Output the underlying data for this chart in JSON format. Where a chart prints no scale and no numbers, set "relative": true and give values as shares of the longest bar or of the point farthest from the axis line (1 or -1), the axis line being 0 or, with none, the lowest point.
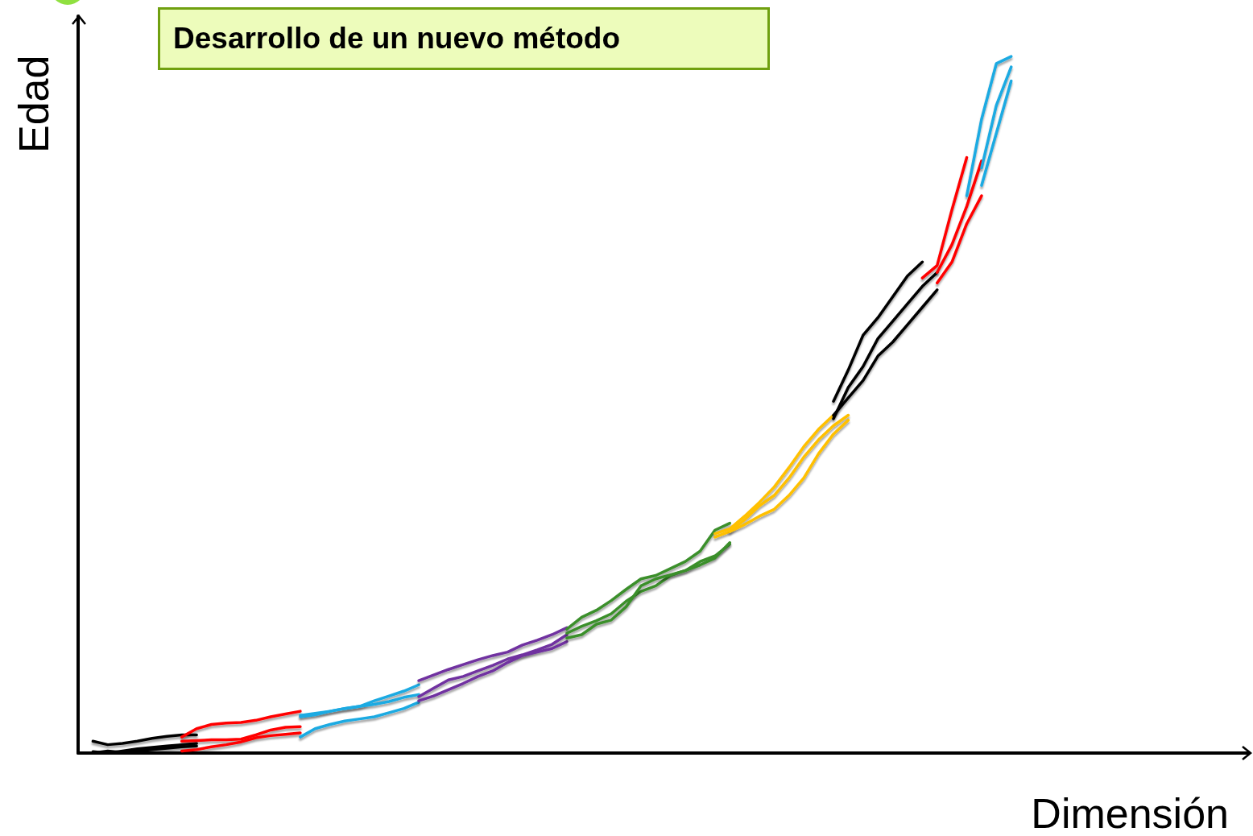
{
  "chart_data": {
    "type": "line",
    "title": "Desarrollo de un nuevo método",
    "xlabel": "Dimensión",
    "ylabel": "Edad",
    "relative": true,
    "marker": "none",
    "categories": [
      null,
      null,
      null,
      null,
      null,
      null,
      null,
      null,
      null,
      null,
      null,
      null,
      null,
      null,
      null,
      null,
      null,
      null,
      null,
      null,
      null,
      null,
      null,
      null,
      null,
      null,
      null,
      null,
      null,
      null,
      null,
      null,
      null,
      null,
      null,
      null,
      null,
      null,
      null,
      null,
      null,
      null,
      null,
      null,
      null,
      null,
      null,
      null,
      null,
      null,
      null,
      null,
      null,
      null,
      null,
      null,
      null,
      null,
      null,
      null,
      null,
      null,
      null,
      null,
      null,
      null,
      null,
      null,
      null,
      null,
      null,
      null,
      null,
      null,
      null,
      null,
      null,
      null,
      null,
      null
    ],
    "series": [
      {
        "color": "#000000",
        "values": [
          null,
          0.017,
          0.012,
          0.014,
          0.017,
          0.021,
          0.024,
          0.026,
          0.026,
          null,
          null,
          null,
          null,
          null,
          null,
          null,
          null,
          null,
          null,
          null,
          null,
          null,
          null,
          null,
          null,
          null,
          null,
          null,
          null,
          null,
          null,
          null,
          null,
          null,
          null,
          null,
          null,
          null,
          null,
          null,
          null,
          null,
          null,
          null,
          null,
          null,
          null,
          null,
          null,
          null,
          null,
          null,
          null,
          null,
          null,
          null,
          null,
          null,
          null,
          null,
          null,
          null,
          null,
          null,
          null,
          null,
          null,
          null,
          null,
          null,
          null,
          null,
          null,
          null,
          null,
          null,
          null,
          null,
          null,
          null
        ]
      },
      {
        "color": "#000000",
        "values": [
          null,
          0.002,
          0.0,
          0.003,
          0.006,
          0.008,
          0.01,
          0.012,
          0.014,
          null,
          null,
          null,
          null,
          null,
          null,
          null,
          null,
          null,
          null,
          null,
          null,
          null,
          null,
          null,
          null,
          null,
          null,
          null,
          null,
          null,
          null,
          null,
          null,
          null,
          null,
          null,
          null,
          null,
          null,
          null,
          null,
          null,
          null,
          null,
          null,
          null,
          null,
          null,
          null,
          null,
          null,
          null,
          null,
          null,
          null,
          null,
          null,
          null,
          null,
          null,
          null,
          null,
          null,
          null,
          null,
          null,
          null,
          null,
          null,
          null,
          null,
          null,
          null,
          null,
          null,
          null,
          null,
          null,
          null,
          null
        ]
      },
      {
        "color": "#000000",
        "values": [
          null,
          0.0,
          0.003,
          0.001,
          0.003,
          0.005,
          0.007,
          0.009,
          0.01,
          null,
          null,
          null,
          null,
          null,
          null,
          null,
          null,
          null,
          null,
          null,
          null,
          null,
          null,
          null,
          null,
          null,
          null,
          null,
          null,
          null,
          null,
          null,
          null,
          null,
          null,
          null,
          null,
          null,
          null,
          null,
          null,
          null,
          null,
          null,
          null,
          null,
          null,
          null,
          null,
          null,
          null,
          null,
          null,
          null,
          null,
          null,
          null,
          null,
          null,
          null,
          null,
          null,
          null,
          null,
          null,
          null,
          null,
          null,
          null,
          null,
          null,
          null,
          null,
          null,
          null,
          null,
          null,
          null,
          null,
          null
        ]
      },
      {
        "color": "#ff0000",
        "values": [
          null,
          null,
          null,
          null,
          null,
          null,
          null,
          0.023,
          0.035,
          0.041,
          0.043,
          0.044,
          0.047,
          0.052,
          0.056,
          0.06,
          null,
          null,
          null,
          null,
          null,
          null,
          null,
          null,
          null,
          null,
          null,
          null,
          null,
          null,
          null,
          null,
          null,
          null,
          null,
          null,
          null,
          null,
          null,
          null,
          null,
          null,
          null,
          null,
          null,
          null,
          null,
          null,
          null,
          null,
          null,
          null,
          null,
          null,
          null,
          null,
          null,
          null,
          null,
          null,
          null,
          null,
          null,
          null,
          null,
          null,
          null,
          null,
          null,
          null,
          null,
          null,
          null,
          null,
          null,
          null,
          null,
          null,
          null,
          null
        ]
      },
      {
        "color": "#ff0000",
        "values": [
          null,
          null,
          null,
          null,
          null,
          null,
          null,
          0.017,
          0.018,
          0.019,
          0.019,
          0.02,
          0.026,
          0.033,
          0.037,
          0.038,
          null,
          null,
          null,
          null,
          null,
          null,
          null,
          null,
          null,
          null,
          null,
          null,
          null,
          null,
          null,
          null,
          null,
          null,
          null,
          null,
          null,
          null,
          null,
          null,
          null,
          null,
          null,
          null,
          null,
          null,
          null,
          null,
          null,
          null,
          null,
          null,
          null,
          null,
          null,
          null,
          null,
          null,
          null,
          null,
          null,
          null,
          null,
          null,
          null,
          null,
          null,
          null,
          null,
          null,
          null,
          null,
          null,
          null,
          null,
          null,
          null,
          null,
          null,
          null
        ]
      },
      {
        "color": "#ff0000",
        "values": [
          null,
          null,
          null,
          null,
          null,
          null,
          null,
          0.003,
          0.005,
          0.009,
          0.012,
          0.016,
          0.022,
          0.025,
          0.027,
          0.029,
          null,
          null,
          null,
          null,
          null,
          null,
          null,
          null,
          null,
          null,
          null,
          null,
          null,
          null,
          null,
          null,
          null,
          null,
          null,
          null,
          null,
          null,
          null,
          null,
          null,
          null,
          null,
          null,
          null,
          null,
          null,
          null,
          null,
          null,
          null,
          null,
          null,
          null,
          null,
          null,
          null,
          null,
          null,
          null,
          null,
          null,
          null,
          null,
          null,
          null,
          null,
          null,
          null,
          null,
          null,
          null,
          null,
          null,
          null,
          null,
          null,
          null,
          null,
          null
        ]
      },
      {
        "color": "#1aaae2",
        "values": [
          null,
          null,
          null,
          null,
          null,
          null,
          null,
          null,
          null,
          null,
          null,
          null,
          null,
          null,
          null,
          0.054,
          0.057,
          0.06,
          0.064,
          0.067,
          0.075,
          0.082,
          0.089,
          0.098,
          null,
          null,
          null,
          null,
          null,
          null,
          null,
          null,
          null,
          null,
          null,
          null,
          null,
          null,
          null,
          null,
          null,
          null,
          null,
          null,
          null,
          null,
          null,
          null,
          null,
          null,
          null,
          null,
          null,
          null,
          null,
          null,
          null,
          null,
          null,
          null,
          null,
          null,
          null,
          null,
          null,
          null,
          null,
          null,
          null,
          null,
          null,
          null,
          null,
          null,
          null,
          null,
          null,
          null,
          null,
          null
        ]
      },
      {
        "color": "#1aaae2",
        "values": [
          null,
          null,
          null,
          null,
          null,
          null,
          null,
          null,
          null,
          null,
          null,
          null,
          null,
          null,
          null,
          0.052,
          0.055,
          0.06,
          0.064,
          0.067,
          0.07,
          0.074,
          0.08,
          0.084,
          null,
          null,
          null,
          null,
          null,
          null,
          null,
          null,
          null,
          null,
          null,
          null,
          null,
          null,
          null,
          null,
          null,
          null,
          null,
          null,
          null,
          null,
          null,
          null,
          null,
          null,
          null,
          null,
          null,
          null,
          null,
          null,
          null,
          null,
          null,
          null,
          null,
          null,
          null,
          null,
          null,
          null,
          null,
          null,
          null,
          null,
          null,
          null,
          null,
          null,
          null,
          null,
          null,
          null,
          null,
          null
        ]
      },
      {
        "color": "#1aaae2",
        "values": [
          null,
          null,
          null,
          null,
          null,
          null,
          null,
          null,
          null,
          null,
          null,
          null,
          null,
          null,
          null,
          0.023,
          0.035,
          0.041,
          0.046,
          0.049,
          0.052,
          0.058,
          0.064,
          0.073,
          null,
          null,
          null,
          null,
          null,
          null,
          null,
          null,
          null,
          null,
          null,
          null,
          null,
          null,
          null,
          null,
          null,
          null,
          null,
          null,
          null,
          null,
          null,
          null,
          null,
          null,
          null,
          null,
          null,
          null,
          null,
          null,
          null,
          null,
          null,
          null,
          null,
          null,
          null,
          null,
          null,
          null,
          null,
          null,
          null,
          null,
          null,
          null,
          null,
          null,
          null,
          null,
          null,
          null,
          null,
          null
        ]
      },
      {
        "color": "#7030a0",
        "values": [
          null,
          null,
          null,
          null,
          null,
          null,
          null,
          null,
          null,
          null,
          null,
          null,
          null,
          null,
          null,
          null,
          null,
          null,
          null,
          null,
          null,
          null,
          null,
          0.104,
          0.112,
          0.12,
          0.127,
          0.134,
          0.14,
          0.145,
          0.155,
          0.162,
          0.17,
          0.18,
          null,
          null,
          null,
          null,
          null,
          null,
          null,
          null,
          null,
          null,
          null,
          null,
          null,
          null,
          null,
          null,
          null,
          null,
          null,
          null,
          null,
          null,
          null,
          null,
          null,
          null,
          null,
          null,
          null,
          null,
          null,
          null,
          null,
          null,
          null,
          null,
          null,
          null,
          null,
          null,
          null,
          null,
          null,
          null,
          null,
          null
        ]
      },
      {
        "color": "#7030a0",
        "values": [
          null,
          null,
          null,
          null,
          null,
          null,
          null,
          null,
          null,
          null,
          null,
          null,
          null,
          null,
          null,
          null,
          null,
          null,
          null,
          null,
          null,
          null,
          null,
          0.081,
          0.093,
          0.105,
          0.11,
          0.118,
          0.126,
          0.135,
          0.141,
          0.148,
          0.156,
          0.17,
          null,
          null,
          null,
          null,
          null,
          null,
          null,
          null,
          null,
          null,
          null,
          null,
          null,
          null,
          null,
          null,
          null,
          null,
          null,
          null,
          null,
          null,
          null,
          null,
          null,
          null,
          null,
          null,
          null,
          null,
          null,
          null,
          null,
          null,
          null,
          null,
          null,
          null,
          null,
          null,
          null,
          null,
          null,
          null,
          null,
          null
        ]
      },
      {
        "color": "#7030a0",
        "values": [
          null,
          null,
          null,
          null,
          null,
          null,
          null,
          null,
          null,
          null,
          null,
          null,
          null,
          null,
          null,
          null,
          null,
          null,
          null,
          null,
          null,
          null,
          null,
          0.075,
          0.082,
          0.091,
          0.1,
          0.11,
          0.118,
          0.13,
          0.14,
          0.145,
          0.15,
          0.16,
          null,
          null,
          null,
          null,
          null,
          null,
          null,
          null,
          null,
          null,
          null,
          null,
          null,
          null,
          null,
          null,
          null,
          null,
          null,
          null,
          null,
          null,
          null,
          null,
          null,
          null,
          null,
          null,
          null,
          null,
          null,
          null,
          null,
          null,
          null,
          null,
          null,
          null,
          null,
          null,
          null,
          null,
          null,
          null,
          null,
          null
        ]
      },
      {
        "color": "#3a8f2c",
        "values": [
          null,
          null,
          null,
          null,
          null,
          null,
          null,
          null,
          null,
          null,
          null,
          null,
          null,
          null,
          null,
          null,
          null,
          null,
          null,
          null,
          null,
          null,
          null,
          null,
          null,
          null,
          null,
          null,
          null,
          null,
          null,
          null,
          null,
          0.178,
          0.195,
          0.205,
          0.219,
          0.235,
          0.25,
          0.255,
          0.265,
          0.275,
          0.29,
          0.32,
          0.33,
          null,
          null,
          null,
          null,
          null,
          null,
          null,
          null,
          null,
          null,
          null,
          null,
          null,
          null,
          null,
          null,
          null,
          null,
          null,
          null,
          null,
          null,
          null,
          null,
          null,
          null,
          null,
          null,
          null,
          null,
          null,
          null,
          null,
          null,
          null
        ]
      },
      {
        "color": "#3a8f2c",
        "values": [
          null,
          null,
          null,
          null,
          null,
          null,
          null,
          null,
          null,
          null,
          null,
          null,
          null,
          null,
          null,
          null,
          null,
          null,
          null,
          null,
          null,
          null,
          null,
          null,
          null,
          null,
          null,
          null,
          null,
          null,
          null,
          null,
          null,
          0.172,
          0.182,
          0.19,
          0.2,
          0.218,
          0.232,
          0.24,
          0.255,
          0.262,
          0.275,
          0.283,
          0.3,
          null,
          null,
          null,
          null,
          null,
          null,
          null,
          null,
          null,
          null,
          null,
          null,
          null,
          null,
          null,
          null,
          null,
          null,
          null,
          null,
          null,
          null,
          null,
          null,
          null,
          null,
          null,
          null,
          null,
          null,
          null,
          null,
          null,
          null,
          null
        ]
      },
      {
        "color": "#3a8f2c",
        "values": [
          null,
          null,
          null,
          null,
          null,
          null,
          null,
          null,
          null,
          null,
          null,
          null,
          null,
          null,
          null,
          null,
          null,
          null,
          null,
          null,
          null,
          null,
          null,
          null,
          null,
          null,
          null,
          null,
          null,
          null,
          null,
          null,
          null,
          0.165,
          0.17,
          0.185,
          0.191,
          0.21,
          0.24,
          0.25,
          0.256,
          0.262,
          0.27,
          0.28,
          0.302,
          null,
          null,
          null,
          null,
          null,
          null,
          null,
          null,
          null,
          null,
          null,
          null,
          null,
          null,
          null,
          null,
          null,
          null,
          null,
          null,
          null,
          null,
          null,
          null,
          null,
          null,
          null,
          null,
          null,
          null,
          null,
          null,
          null,
          null,
          null
        ]
      },
      {
        "color": "#ffc000",
        "values": [
          null,
          null,
          null,
          null,
          null,
          null,
          null,
          null,
          null,
          null,
          null,
          null,
          null,
          null,
          null,
          null,
          null,
          null,
          null,
          null,
          null,
          null,
          null,
          null,
          null,
          null,
          null,
          null,
          null,
          null,
          null,
          null,
          null,
          null,
          null,
          null,
          null,
          null,
          null,
          null,
          null,
          null,
          null,
          0.315,
          0.322,
          0.34,
          0.36,
          0.382,
          0.41,
          0.44,
          0.465,
          0.485,
          null,
          null,
          null,
          null,
          null,
          null,
          null,
          null,
          null,
          null,
          null,
          null,
          null,
          null,
          null,
          null,
          null,
          null,
          null,
          null,
          null,
          null,
          null,
          null,
          null,
          null,
          null,
          null
        ]
      },
      {
        "color": "#ffc000",
        "values": [
          null,
          null,
          null,
          null,
          null,
          null,
          null,
          null,
          null,
          null,
          null,
          null,
          null,
          null,
          null,
          null,
          null,
          null,
          null,
          null,
          null,
          null,
          null,
          null,
          null,
          null,
          null,
          null,
          null,
          null,
          null,
          null,
          null,
          null,
          null,
          null,
          null,
          null,
          null,
          null,
          null,
          null,
          null,
          0.31,
          0.318,
          0.335,
          0.355,
          0.37,
          0.395,
          0.425,
          0.45,
          0.47,
          0.485,
          null,
          null,
          null,
          null,
          null,
          null,
          null,
          null,
          null,
          null,
          null,
          null,
          null,
          null,
          null,
          null,
          null,
          null,
          null,
          null,
          null,
          null,
          null,
          null,
          null,
          null,
          null
        ]
      },
      {
        "color": "#ffc000",
        "values": [
          null,
          null,
          null,
          null,
          null,
          null,
          null,
          null,
          null,
          null,
          null,
          null,
          null,
          null,
          null,
          null,
          null,
          null,
          null,
          null,
          null,
          null,
          null,
          null,
          null,
          null,
          null,
          null,
          null,
          null,
          null,
          null,
          null,
          null,
          null,
          null,
          null,
          null,
          null,
          null,
          null,
          null,
          null,
          null,
          0.318,
          0.328,
          0.34,
          0.35,
          0.37,
          0.395,
          0.43,
          0.458,
          0.478,
          null,
          null,
          null,
          null,
          null,
          null,
          null,
          null,
          null,
          null,
          null,
          null,
          null,
          null,
          null,
          null,
          null,
          null,
          null,
          null,
          null,
          null,
          null,
          null,
          null,
          null,
          null
        ]
      },
      {
        "color": "#000000",
        "values": [
          null,
          null,
          null,
          null,
          null,
          null,
          null,
          null,
          null,
          null,
          null,
          null,
          null,
          null,
          null,
          null,
          null,
          null,
          null,
          null,
          null,
          null,
          null,
          null,
          null,
          null,
          null,
          null,
          null,
          null,
          null,
          null,
          null,
          null,
          null,
          null,
          null,
          null,
          null,
          null,
          null,
          null,
          null,
          null,
          null,
          null,
          null,
          null,
          null,
          null,
          null,
          0.505,
          0.55,
          0.6,
          0.625,
          0.655,
          0.685,
          0.705,
          null,
          null,
          null,
          null,
          null,
          null,
          null,
          null,
          null,
          null,
          null,
          null,
          null,
          null,
          null,
          null,
          null,
          null,
          null,
          null,
          null,
          null
        ]
      },
      {
        "color": "#000000",
        "values": [
          null,
          null,
          null,
          null,
          null,
          null,
          null,
          null,
          null,
          null,
          null,
          null,
          null,
          null,
          null,
          null,
          null,
          null,
          null,
          null,
          null,
          null,
          null,
          null,
          null,
          null,
          null,
          null,
          null,
          null,
          null,
          null,
          null,
          null,
          null,
          null,
          null,
          null,
          null,
          null,
          null,
          null,
          null,
          null,
          null,
          null,
          null,
          null,
          null,
          null,
          null,
          0.48,
          0.525,
          0.555,
          0.595,
          0.62,
          0.645,
          0.67,
          0.69,
          null,
          null,
          null,
          null,
          null,
          null,
          null,
          null,
          null,
          null,
          null,
          null,
          null,
          null,
          null,
          null,
          null,
          null,
          null,
          null,
          null
        ]
      },
      {
        "color": "#000000",
        "values": [
          null,
          null,
          null,
          null,
          null,
          null,
          null,
          null,
          null,
          null,
          null,
          null,
          null,
          null,
          null,
          null,
          null,
          null,
          null,
          null,
          null,
          null,
          null,
          null,
          null,
          null,
          null,
          null,
          null,
          null,
          null,
          null,
          null,
          null,
          null,
          null,
          null,
          null,
          null,
          null,
          null,
          null,
          null,
          null,
          null,
          null,
          null,
          null,
          null,
          null,
          null,
          0.485,
          0.51,
          0.535,
          0.57,
          0.59,
          0.615,
          0.64,
          0.665,
          null,
          null,
          null,
          null,
          null,
          null,
          null,
          null,
          null,
          null,
          null,
          null,
          null,
          null,
          null,
          null,
          null,
          null,
          null,
          null,
          null
        ]
      },
      {
        "color": "#ff0000",
        "values": [
          null,
          null,
          null,
          null,
          null,
          null,
          null,
          null,
          null,
          null,
          null,
          null,
          null,
          null,
          null,
          null,
          null,
          null,
          null,
          null,
          null,
          null,
          null,
          null,
          null,
          null,
          null,
          null,
          null,
          null,
          null,
          null,
          null,
          null,
          null,
          null,
          null,
          null,
          null,
          null,
          null,
          null,
          null,
          null,
          null,
          null,
          null,
          null,
          null,
          null,
          null,
          null,
          null,
          null,
          null,
          null,
          null,
          0.682,
          0.7,
          0.78,
          0.855,
          null,
          null,
          null,
          null,
          null,
          null,
          null,
          null,
          null,
          null,
          null,
          null,
          null,
          null,
          null,
          null,
          null,
          null,
          null
        ]
      },
      {
        "color": "#ff0000",
        "values": [
          null,
          null,
          null,
          null,
          null,
          null,
          null,
          null,
          null,
          null,
          null,
          null,
          null,
          null,
          null,
          null,
          null,
          null,
          null,
          null,
          null,
          null,
          null,
          null,
          null,
          null,
          null,
          null,
          null,
          null,
          null,
          null,
          null,
          null,
          null,
          null,
          null,
          null,
          null,
          null,
          null,
          null,
          null,
          null,
          null,
          null,
          null,
          null,
          null,
          null,
          null,
          null,
          null,
          null,
          null,
          null,
          null,
          null,
          0.69,
          0.73,
          0.785,
          0.85,
          null,
          null,
          null,
          null,
          null,
          null,
          null,
          null,
          null,
          null,
          null,
          null,
          null,
          null,
          null,
          null,
          null,
          null
        ]
      },
      {
        "color": "#ff0000",
        "values": [
          null,
          null,
          null,
          null,
          null,
          null,
          null,
          null,
          null,
          null,
          null,
          null,
          null,
          null,
          null,
          null,
          null,
          null,
          null,
          null,
          null,
          null,
          null,
          null,
          null,
          null,
          null,
          null,
          null,
          null,
          null,
          null,
          null,
          null,
          null,
          null,
          null,
          null,
          null,
          null,
          null,
          null,
          null,
          null,
          null,
          null,
          null,
          null,
          null,
          null,
          null,
          null,
          null,
          null,
          null,
          null,
          null,
          null,
          0.675,
          0.705,
          0.76,
          0.8,
          null,
          null,
          null,
          null,
          null,
          null,
          null,
          null,
          null,
          null,
          null,
          null,
          null,
          null,
          null,
          null,
          null,
          null
        ]
      },
      {
        "color": "#1aaae2",
        "values": [
          null,
          null,
          null,
          null,
          null,
          null,
          null,
          null,
          null,
          null,
          null,
          null,
          null,
          null,
          null,
          null,
          null,
          null,
          null,
          null,
          null,
          null,
          null,
          null,
          null,
          null,
          null,
          null,
          null,
          null,
          null,
          null,
          null,
          null,
          null,
          null,
          null,
          null,
          null,
          null,
          null,
          null,
          null,
          null,
          null,
          null,
          null,
          null,
          null,
          null,
          null,
          null,
          null,
          null,
          null,
          null,
          null,
          null,
          null,
          null,
          0.8,
          0.91,
          0.99,
          1.0,
          null,
          null,
          null,
          null,
          null,
          null,
          null,
          null,
          null,
          null,
          null,
          null,
          null,
          null,
          null,
          null
        ]
      },
      {
        "color": "#1aaae2",
        "values": [
          null,
          null,
          null,
          null,
          null,
          null,
          null,
          null,
          null,
          null,
          null,
          null,
          null,
          null,
          null,
          null,
          null,
          null,
          null,
          null,
          null,
          null,
          null,
          null,
          null,
          null,
          null,
          null,
          null,
          null,
          null,
          null,
          null,
          null,
          null,
          null,
          null,
          null,
          null,
          null,
          null,
          null,
          null,
          null,
          null,
          null,
          null,
          null,
          null,
          null,
          null,
          null,
          null,
          null,
          null,
          null,
          null,
          null,
          null,
          null,
          null,
          0.84,
          0.93,
          0.985,
          null,
          null,
          null,
          null,
          null,
          null,
          null,
          null,
          null,
          null,
          null,
          null,
          null,
          null,
          null,
          null
        ]
      },
      {
        "color": "#1aaae2",
        "values": [
          null,
          null,
          null,
          null,
          null,
          null,
          null,
          null,
          null,
          null,
          null,
          null,
          null,
          null,
          null,
          null,
          null,
          null,
          null,
          null,
          null,
          null,
          null,
          null,
          null,
          null,
          null,
          null,
          null,
          null,
          null,
          null,
          null,
          null,
          null,
          null,
          null,
          null,
          null,
          null,
          null,
          null,
          null,
          null,
          null,
          null,
          null,
          null,
          null,
          null,
          null,
          null,
          null,
          null,
          null,
          null,
          null,
          null,
          null,
          null,
          null,
          0.815,
          0.89,
          0.965,
          null,
          null,
          null,
          null,
          null,
          null,
          null,
          null,
          null,
          null,
          null,
          null,
          null,
          null,
          null,
          null
        ]
      }
    ]
  }
}
